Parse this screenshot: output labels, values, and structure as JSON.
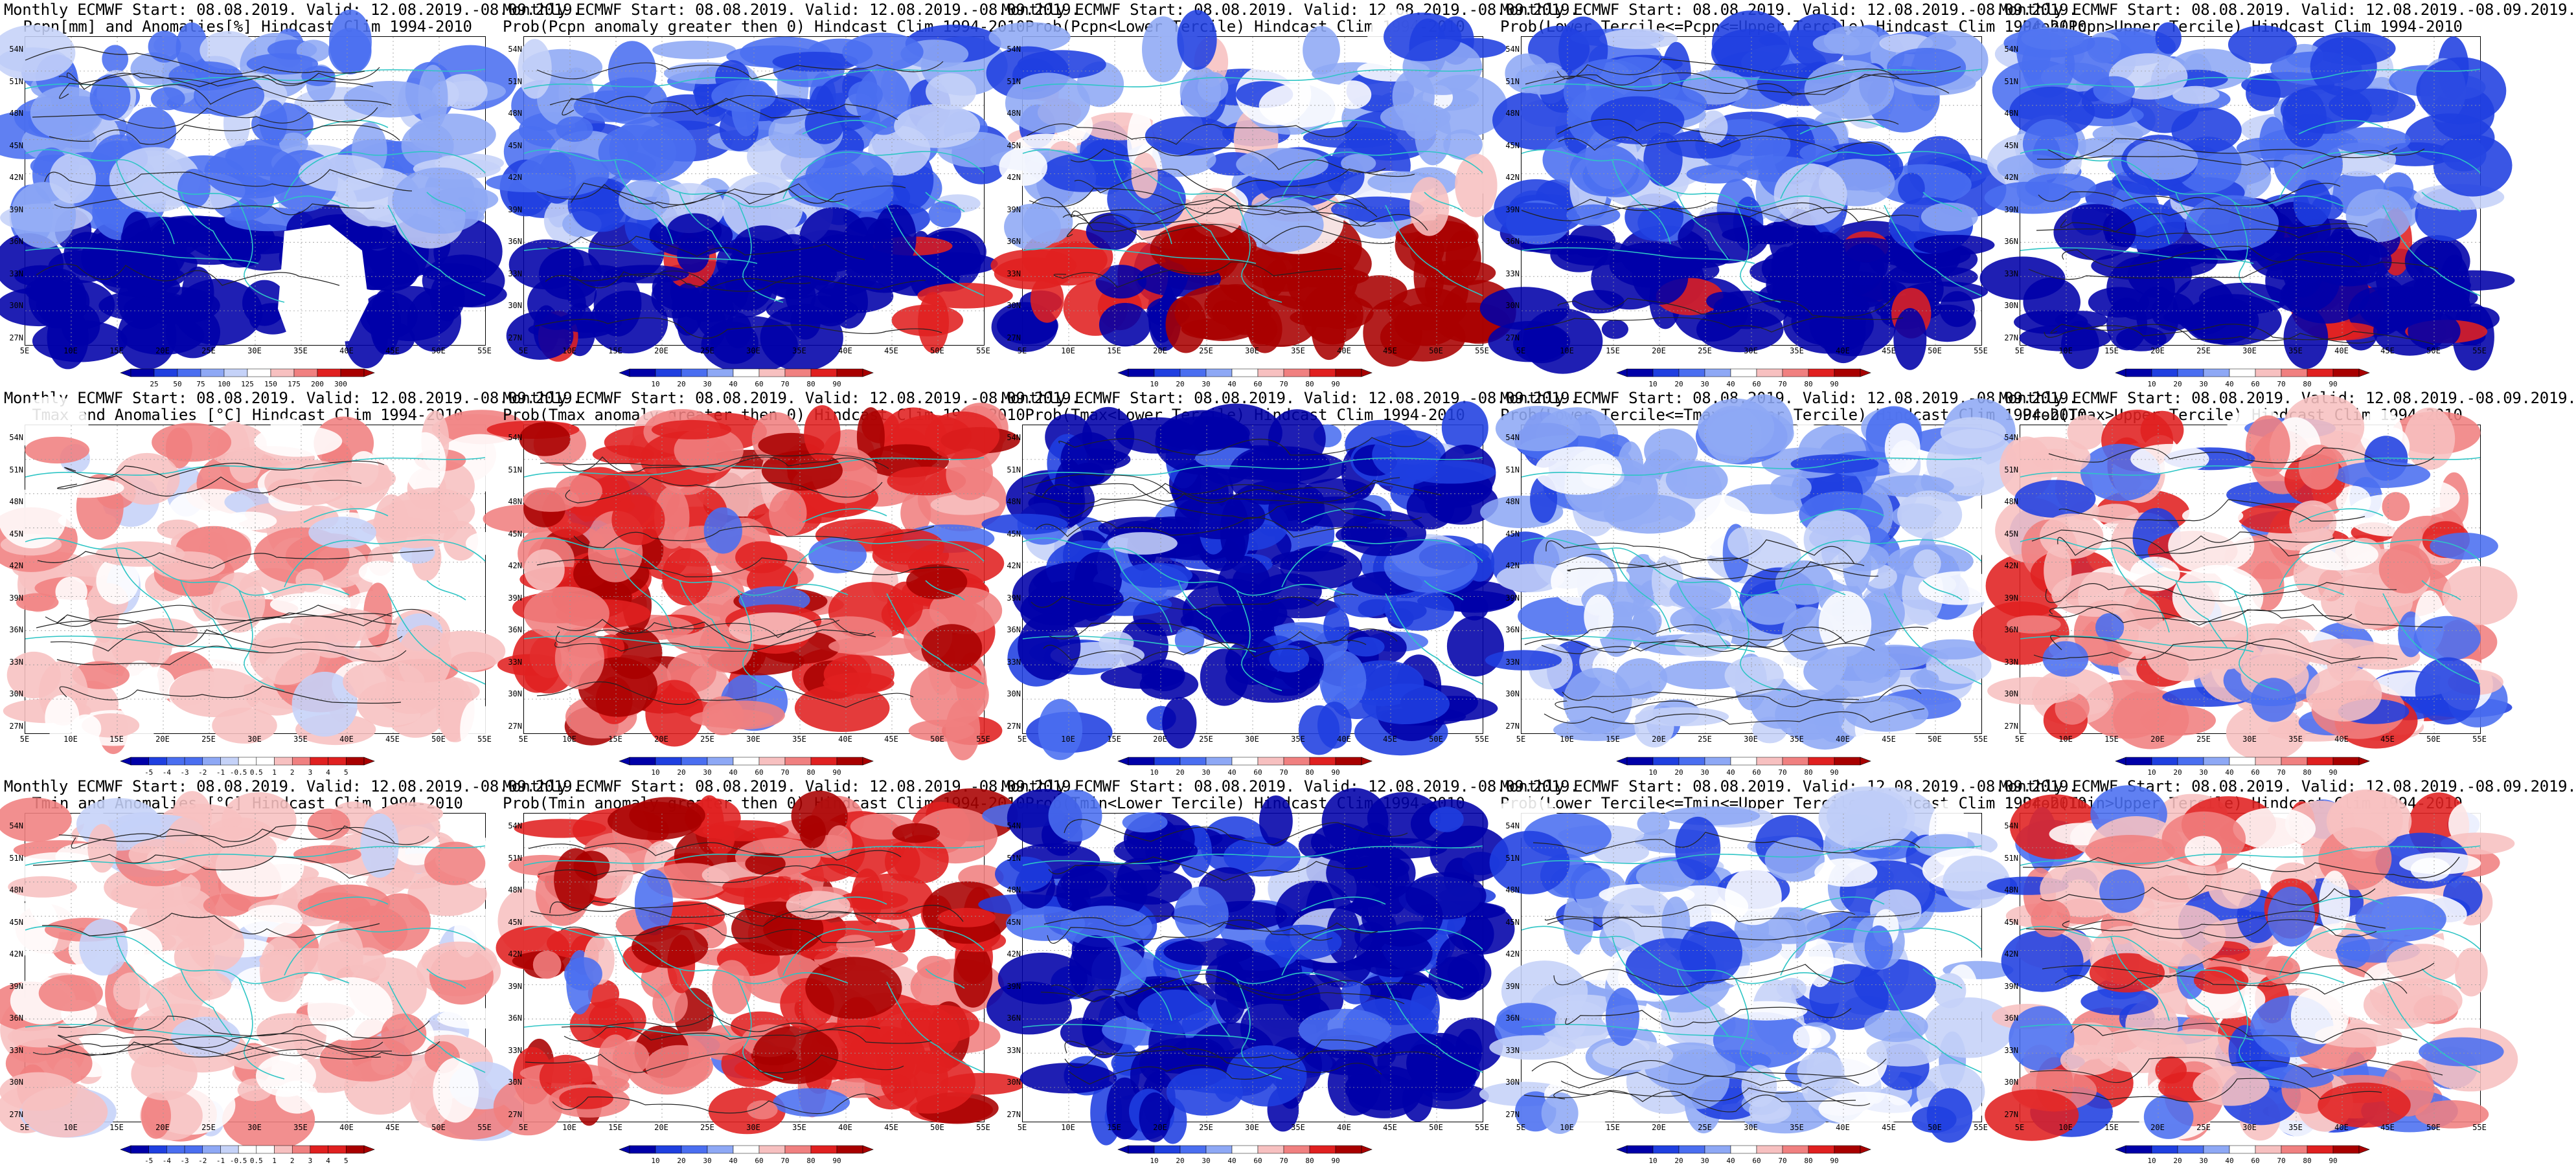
{
  "lat_labels": [
    "54N",
    "51N",
    "48N",
    "45N",
    "42N",
    "39N",
    "36N",
    "33N",
    "30N",
    "27N"
  ],
  "lon_labels": [
    "5E",
    "10E",
    "15E",
    "20E",
    "25E",
    "30E",
    "35E",
    "40E",
    "45E",
    "50E",
    "55E"
  ],
  "colorbars": {
    "precip_anom": [
      "25",
      "50",
      "75",
      "100",
      "125",
      "150",
      "175",
      "200",
      "300"
    ],
    "prob": [
      "10",
      "20",
      "30",
      "40",
      "60",
      "70",
      "80",
      "90"
    ],
    "temp_anom": [
      "-5",
      "-4",
      "-3",
      "-2",
      "-1",
      "-0.5",
      "0.5",
      "1",
      "2",
      "3",
      "4",
      "5"
    ]
  },
  "colors": {
    "coast": "#2ec5c5",
    "contour": "#222222",
    "scale_9": [
      "#0000a8",
      "#1f3fe0",
      "#4a6ef0",
      "#8ea8f5",
      "#c5d2f8",
      "#ffffff",
      "#f7c0c0",
      "#f08080",
      "#e02020",
      "#a80000"
    ]
  },
  "panels": [
    {
      "id": "p1",
      "line1": "Monthly ECMWF Start: 08.08.2019. Valid: 12.08.2019.-08.09.2019.",
      "line2": "Pcpn[mm] and Anomalies[%] Hindcast Clim 1994-2010",
      "scale": "precip_anom",
      "pattern": "precip"
    },
    {
      "id": "p2",
      "line1": "Monthly ECMWF Start: 08.08.2019. Valid: 12.08.2019.-08.09.2019.",
      "line2": "Prob(Pcpn anomaly greater then 0) Hindcast Clim 1994-2010",
      "scale": "prob",
      "pattern": "blue"
    },
    {
      "id": "p3",
      "line1": "Monthly ECMWF Start: 08.08.2019. Valid: 12.08.2019.-08.09.2019.",
      "line2": "Prob(Pcpn<Lower Tercile) Hindcast Clim 1994-2010",
      "scale": "prob",
      "pattern": "redsouth"
    },
    {
      "id": "p4",
      "line1": "Monthly ECMWF Start: 08.08.2019. Valid: 12.08.2019.-08.09.2019.",
      "line2": "Prob(Lower Tercile<=Pcpn<=Upper Tercile) Hindcast Clim 1994-2010",
      "scale": "prob",
      "pattern": "blue"
    },
    {
      "id": "p5",
      "line1": "Monthly ECMWF Start: 08.08.2019. Valid: 12.08.2019.-08.09.2019.",
      "line2": "Prob(Pcpn>Upper Tercile) Hindcast Clim 1994-2010",
      "scale": "prob",
      "pattern": "blue"
    },
    {
      "id": "p6",
      "line1": "Monthly ECMWF Start: 08.08.2019. Valid: 12.08.2019.-08.09.2019.",
      "line2": "Tmax and Anomalies [°C] Hindcast Clim 1994-2010",
      "scale": "temp_anom",
      "pattern": "lightred"
    },
    {
      "id": "p7",
      "line1": "Monthly ECMWF Start: 08.08.2019. Valid: 12.08.2019.-08.09.2019.",
      "line2": "Prob(Tmax anomaly greater then 0) Hindcast Clim 1994-2010",
      "scale": "prob",
      "pattern": "red"
    },
    {
      "id": "p8",
      "line1": "Monthly ECMWF Start: 08.08.2019. Valid: 12.08.2019.-08.09.2019.",
      "line2": "Prob(Tmax<Lower Tercile) Hindcast Clim 1994-2010",
      "scale": "prob",
      "pattern": "darkblue"
    },
    {
      "id": "p9",
      "line1": "Monthly ECMWF Start: 08.08.2019. Valid: 12.08.2019.-08.09.2019.",
      "line2": "Prob(Lower Tercile<=Tmax<=Upper Tercile) Hindcast Clim 1994-2010",
      "scale": "prob",
      "pattern": "mixblue"
    },
    {
      "id": "p10",
      "line1": "Monthly ECMWF Start: 08.08.2019. Valid: 12.08.2019.-08.09.2019.",
      "line2": "Prob(Tmax>Upper Tercile) Hindcast Clim 1994-2010",
      "scale": "prob",
      "pattern": "mixred"
    },
    {
      "id": "p11",
      "line1": "Monthly ECMWF Start: 08.08.2019. Valid: 12.08.2019.-08.09.2019.",
      "line2": "Tmin and Anomalies [°C] Hindcast Clim 1994-2010",
      "scale": "temp_anom",
      "pattern": "lightred"
    },
    {
      "id": "p12",
      "line1": "Monthly ECMWF Start: 08.08.2019. Valid: 12.08.2019.-08.09.2019.",
      "line2": "Prob(Tmin anomaly greater then 0) Hindcast Clim 1994-2010",
      "scale": "prob",
      "pattern": "red"
    },
    {
      "id": "p13",
      "line1": "Monthly ECMWF Start: 08.08.2019. Valid: 12.08.2019.-08.09.2019.",
      "line2": "Prob(Tmin<Lower Tercile) Hindcast Clim 1994-2010",
      "scale": "prob",
      "pattern": "darkblue"
    },
    {
      "id": "p14",
      "line1": "Monthly ECMWF Start: 08.08.2019. Valid: 12.08.2019.-08.09.2019.",
      "line2": "Prob(Lower Tercile<=Tmin<=Upper Tercile) Hindcast Clim 1994-2010",
      "scale": "prob",
      "pattern": "mixblue"
    },
    {
      "id": "p15",
      "line1": "Monthly ECMWF Start: 08.08.2019. Valid: 12.08.2019.-08.09.2019.",
      "line2": "Prob(Tmin>Upper Tercile) Hindcast Clim 1994-2010",
      "scale": "prob",
      "pattern": "mixred"
    }
  ]
}
